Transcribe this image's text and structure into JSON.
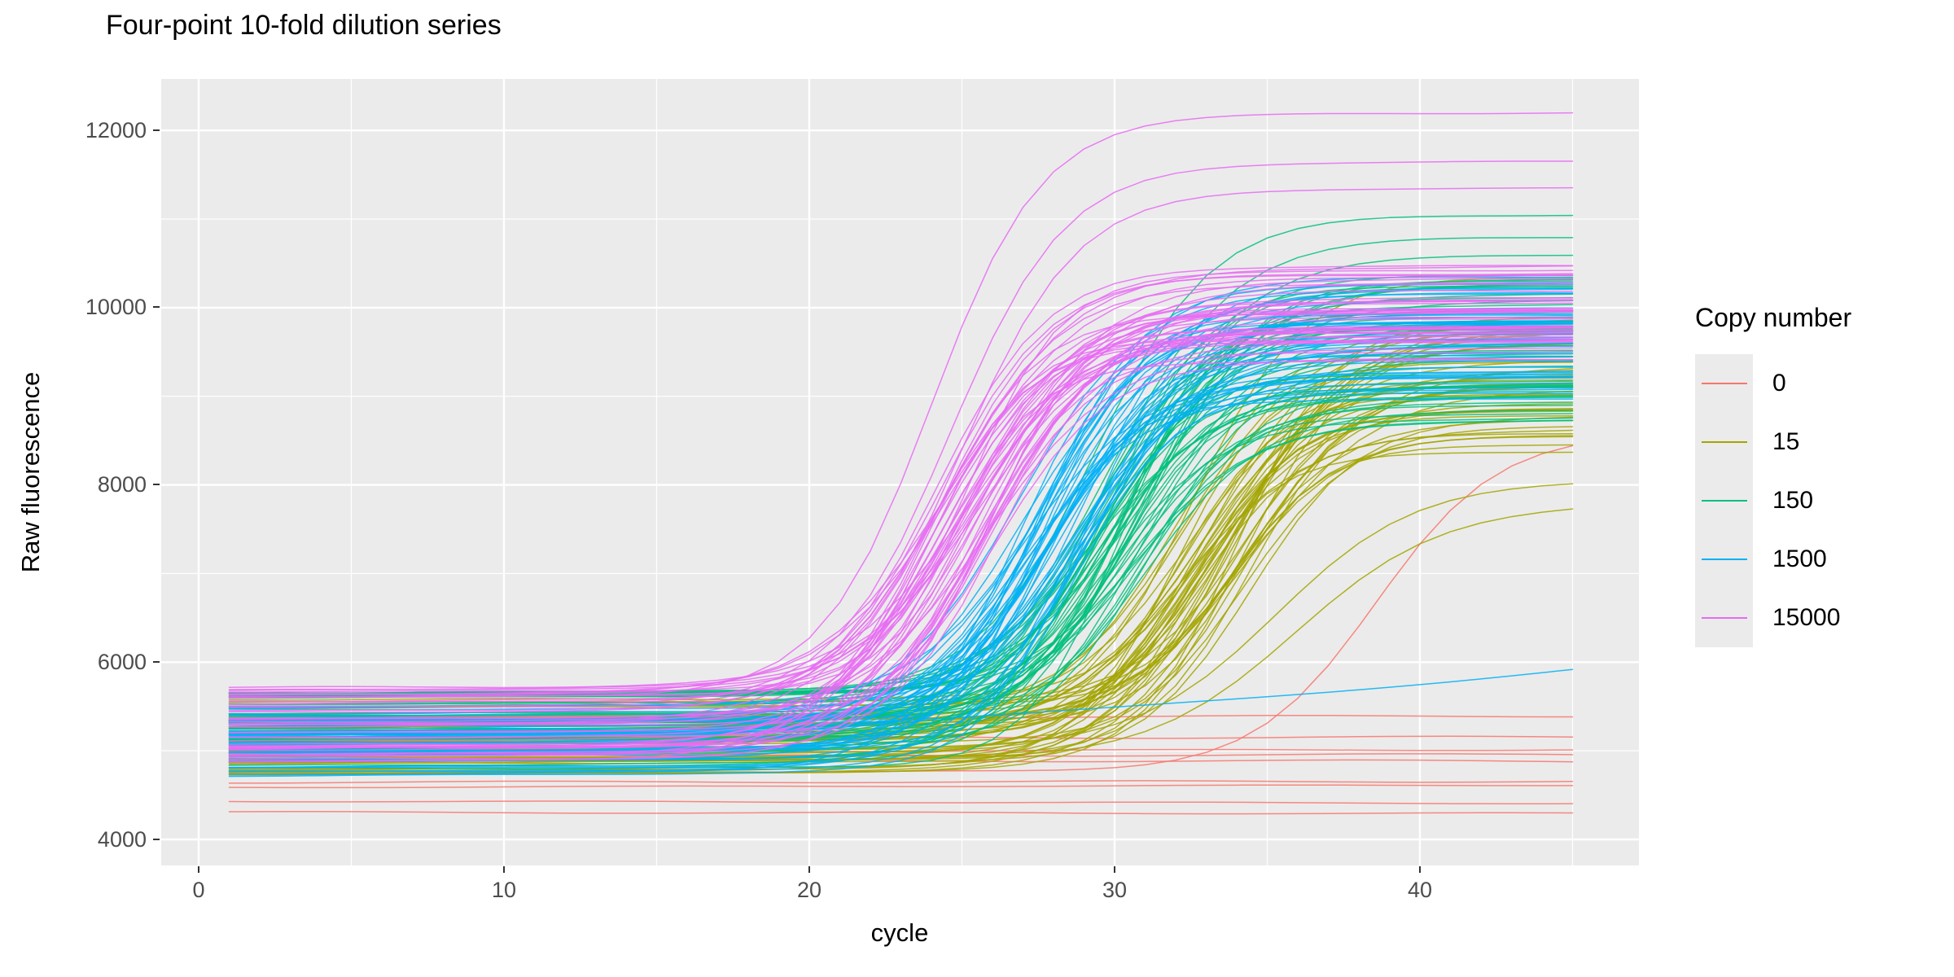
{
  "chart_data": {
    "type": "line",
    "title": "Four-point 10-fold dilution series",
    "xlabel": "cycle",
    "ylabel": "Raw fluorescence",
    "x_ticks": [
      "0",
      "10",
      "20",
      "30",
      "40"
    ],
    "x_tick_values": [
      0,
      10,
      20,
      30,
      40
    ],
    "x_minor_values": [
      5,
      15,
      25,
      35,
      45
    ],
    "y_ticks": [
      "4000",
      "6000",
      "8000",
      "10000",
      "12000"
    ],
    "y_tick_values": [
      4000,
      6000,
      8000,
      10000,
      12000
    ],
    "y_minor_values": [
      5000,
      7000,
      9000,
      11000
    ],
    "xlim": [
      -1.2,
      47.2
    ],
    "ylim": [
      3706,
      12580
    ],
    "x_data_range": [
      1,
      45
    ],
    "grid": "on",
    "panel_bg": "#EBEBEB",
    "grid_color": "#FFFFFF",
    "tick_color": "#333333",
    "tick_label_color": "#4D4D4D",
    "legend": {
      "title": "Copy number",
      "position": "right",
      "entries": [
        {
          "label": "0",
          "color": "#F8766D"
        },
        {
          "label": "15",
          "color": "#A3A500"
        },
        {
          "label": "150",
          "color": "#00BF7D"
        },
        {
          "label": "1500",
          "color": "#00B0F6"
        },
        {
          "label": "15000",
          "color": "#E76BF3"
        }
      ]
    },
    "curve_model": "y(x) = baseline + drift*x + (plateau - baseline - drift*45) / (1 + exp(-(x - midpoint)/slope)), evaluated at integer cycles 1..45",
    "seed": 42,
    "series": [
      {
        "name": "0",
        "color": "#F8766D",
        "draw_order": 1,
        "flat_levels": [
          5380,
          5150,
          5000,
          4945,
          4890,
          4650,
          4600,
          4420,
          4300
        ],
        "outlier_curves": [
          {
            "b": 4750,
            "d": 0.5,
            "m": 38.6,
            "s": 2.0,
            "P": 8600
          }
        ]
      },
      {
        "name": "15",
        "color": "#A3A500",
        "draw_order": 2,
        "n": 44,
        "baseline": [
          4720,
          5600
        ],
        "drift": [
          0.3,
          1.8
        ],
        "midpoint": [
          31.8,
          34.6
        ],
        "slope": [
          1.5,
          2.1
        ],
        "plateau": [
          8350,
          9900
        ],
        "outlier_curves": [
          {
            "b": 5000,
            "d": 0.8,
            "m": 35.3,
            "s": 2.3,
            "P": 8060
          },
          {
            "b": 4880,
            "d": 0.7,
            "m": 36.0,
            "s": 2.4,
            "P": 7800
          },
          {
            "b": 5200,
            "d": 0.9,
            "m": 32.5,
            "s": 1.8,
            "P": 10350
          }
        ]
      },
      {
        "name": "150",
        "color": "#00BF7D",
        "draw_order": 3,
        "n": 44,
        "baseline": [
          4800,
          5660
        ],
        "drift": [
          0.3,
          1.8
        ],
        "midpoint": [
          28.8,
          31.4
        ],
        "slope": [
          1.5,
          2.1
        ],
        "plateau": [
          8700,
          10400
        ],
        "outlier_curves": [
          {
            "b": 5600,
            "d": 1.2,
            "m": 29.3,
            "s": 1.9,
            "P": 11050
          },
          {
            "b": 5500,
            "d": 1.0,
            "m": 29.8,
            "s": 2.0,
            "P": 10800
          },
          {
            "b": 5650,
            "d": 1.5,
            "m": 30.3,
            "s": 2.0,
            "P": 10600
          }
        ]
      },
      {
        "name": "1500",
        "color": "#00B0F6",
        "draw_order": 4,
        "n": 44,
        "baseline": [
          4700,
          5500
        ],
        "drift": [
          0.3,
          1.8
        ],
        "midpoint": [
          26.8,
          29.2
        ],
        "slope": [
          1.5,
          2.1
        ],
        "plateau": [
          8900,
          10350
        ],
        "outlier_curves": [
          {
            "rise_flat": {
              "start": 5150,
              "end": 5920,
              "power": 2.0
            }
          }
        ]
      },
      {
        "name": "15000",
        "color": "#E76BF3",
        "draw_order": 5,
        "n": 44,
        "baseline": [
          4850,
          5750
        ],
        "drift": [
          0.3,
          1.8
        ],
        "midpoint": [
          23.8,
          26.2
        ],
        "slope": [
          1.5,
          2.1
        ],
        "plateau": [
          9350,
          10500
        ],
        "outlier_curves": [
          {
            "b": 5600,
            "d": 1.2,
            "m": 24.0,
            "s": 1.8,
            "P": 12200
          },
          {
            "b": 5500,
            "d": 1.0,
            "m": 24.6,
            "s": 1.9,
            "P": 11650
          },
          {
            "b": 5450,
            "d": 1.0,
            "m": 25.0,
            "s": 1.9,
            "P": 11350
          }
        ]
      }
    ]
  }
}
